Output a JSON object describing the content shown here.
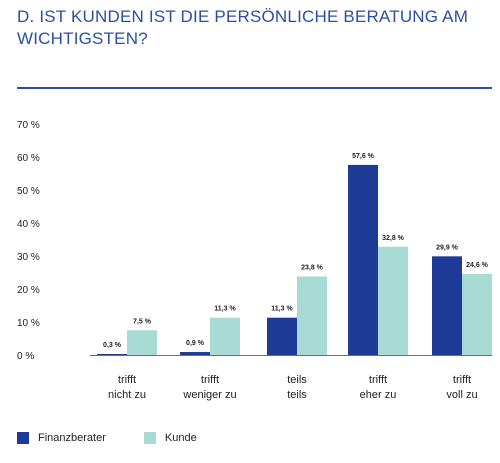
{
  "title": "D. IST KUNDEN IST DIE PERSÖNLICHE BERATUNG AM WICHTIGSTEN?",
  "colors": {
    "title": "#2a4fa7",
    "finanzberater": "#1d3a96",
    "kunde": "#a9dbd5"
  },
  "chart_data": {
    "type": "bar",
    "title": "D. IST KUNDEN IST DIE PERSÖNLICHE BERATUNG AM WICHTIGSTEN?",
    "categories": [
      [
        "trifft",
        "nicht zu"
      ],
      [
        "trifft",
        "weniger zu"
      ],
      [
        "teils",
        "teils"
      ],
      [
        "trifft",
        "eher zu"
      ],
      [
        "trifft",
        "voll zu"
      ]
    ],
    "series": [
      {
        "name": "Finanzberater",
        "values": [
          0.3,
          0.9,
          11.3,
          57.6,
          29.9
        ],
        "labels": [
          "0,3 %",
          "0,9 %",
          "11,3 %",
          "57,6 %",
          "29,9 %"
        ]
      },
      {
        "name": "Kunde",
        "values": [
          7.5,
          11.3,
          23.8,
          32.8,
          24.6
        ],
        "labels": [
          "7,5 %",
          "11,3 %",
          "23,8 %",
          "32,8 %",
          "24,6 %"
        ]
      }
    ],
    "yticks": [
      "0 %",
      "10 %",
      "20 %",
      "30 %",
      "40 %",
      "50 %",
      "60 %",
      "70 %"
    ],
    "ylim": [
      0,
      70
    ],
    "grid": false,
    "legend_position": "bottom-left"
  }
}
